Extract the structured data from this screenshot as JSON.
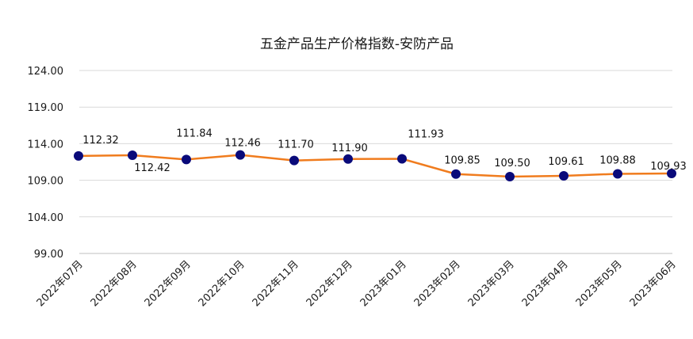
{
  "chart_data": {
    "type": "line",
    "title": "五金产品生产价格指数-安防产品",
    "categories": [
      "2022年07月",
      "2022年08月",
      "2022年09月",
      "2022年10月",
      "2022年11月",
      "2022年12月",
      "2023年01月",
      "2023年02月",
      "2023年03月",
      "2023年04月",
      "2023年05月",
      "2023年06月"
    ],
    "series": [
      {
        "values": [
          112.32,
          112.42,
          111.84,
          112.46,
          111.7,
          111.9,
          111.93,
          109.85,
          109.5,
          109.61,
          109.88,
          109.93
        ],
        "labels": [
          "112.32",
          "112.42",
          "111.84",
          "112.46",
          "111.70",
          "111.90",
          "111.93",
          "109.85",
          "109.50",
          "109.61",
          "109.88",
          "109.93"
        ],
        "line_color": "#f07c1e",
        "marker_color": "#0a0a7a"
      }
    ],
    "ylim": [
      99,
      124
    ],
    "yticks": [
      "99.00",
      "104.00",
      "109.00",
      "114.00",
      "119.00",
      "124.00"
    ],
    "ytick_values": [
      99,
      104,
      109,
      114,
      119,
      124
    ],
    "grid": true,
    "grid_color": "#d9d9d9",
    "legend": "none"
  }
}
